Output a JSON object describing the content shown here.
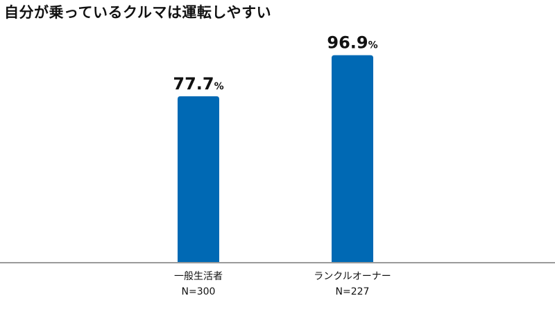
{
  "chart_data": {
    "type": "bar",
    "title": "自分が乗っているクルマは運転しやすい",
    "categories": [
      "一般生活者",
      "ランクルオーナー"
    ],
    "sample_sizes": [
      "N=300",
      "N=227"
    ],
    "values": [
      77.7,
      96.9
    ],
    "unit": "%",
    "ylim": [
      0,
      100
    ],
    "grid": false,
    "colors": {
      "bar": "#0069b4",
      "axis": "#9a9a9a"
    }
  }
}
